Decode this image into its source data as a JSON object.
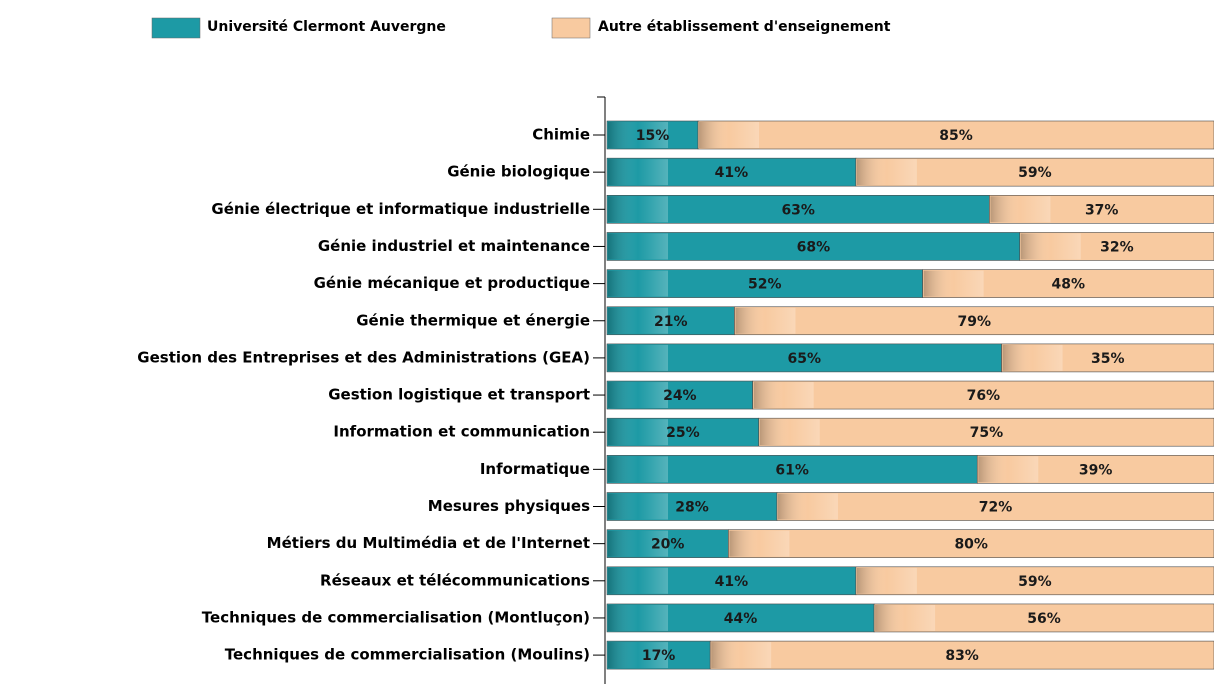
{
  "chart_data": {
    "type": "stacked_bar_horizontal",
    "categories": [
      "Chimie",
      "Génie biologique",
      "Génie électrique et informatique industrielle",
      "Génie industriel et maintenance",
      "Génie mécanique et productique",
      "Génie thermique et énergie",
      "Gestion des Entreprises et des Administrations (GEA)",
      "Gestion logistique et transport",
      "Information et communication",
      "Informatique",
      "Mesures physiques",
      "Métiers du Multimédia et de l'Internet",
      "Réseaux et télécommunications",
      "Techniques de commercialisation (Montluçon)",
      "Techniques de commercialisation (Moulins)"
    ],
    "series": [
      {
        "name": "Université Clermont Auvergne",
        "color": "#1d9aa5",
        "values": [
          15,
          41,
          63,
          68,
          52,
          21,
          65,
          24,
          25,
          61,
          28,
          20,
          41,
          44,
          17
        ],
        "value_labels": [
          "15%",
          "41%",
          "63%",
          "68%",
          "52%",
          "21%",
          "65%",
          "24%",
          "25%",
          "61%",
          "28%",
          "20%",
          "41%",
          "44%",
          "17%"
        ]
      },
      {
        "name": "Autre établissement d'enseignement",
        "color": "#f8caa0",
        "values": [
          85,
          59,
          37,
          32,
          48,
          79,
          35,
          76,
          75,
          39,
          72,
          80,
          59,
          56,
          83
        ],
        "value_labels": [
          "85%",
          "59%",
          "37%",
          "32%",
          "48%",
          "79%",
          "35%",
          "76%",
          "75%",
          "39%",
          "72%",
          "80%",
          "59%",
          "56%",
          "83%"
        ]
      }
    ],
    "xlim": [
      0,
      100
    ]
  }
}
